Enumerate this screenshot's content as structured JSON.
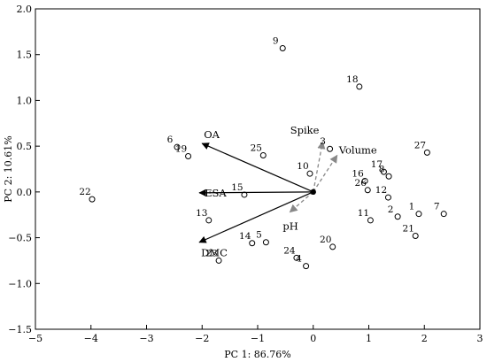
{
  "chart_data": {
    "type": "scatter",
    "xlabel": "PC 1: 86.76%",
    "ylabel": "PC 2: 10.61%",
    "xlim": [
      -5,
      3
    ],
    "ylim": [
      -1.5,
      2.0
    ],
    "xticks": [
      -5,
      -4,
      -3,
      -2,
      -1,
      0,
      1,
      2,
      3
    ],
    "xtick_labels": [
      "−5",
      "−4",
      "−3",
      "−2",
      "−1",
      "0",
      "1",
      "2",
      "3"
    ],
    "yticks": [
      -1.5,
      -1.0,
      -0.5,
      0.0,
      0.5,
      1.0,
      1.5,
      2.0
    ],
    "ytick_labels": [
      "−1.5",
      "−1.0",
      "−0.5",
      "0.0",
      "0.5",
      "1.0",
      "1.5",
      "2.0"
    ],
    "grid": false,
    "points": [
      {
        "label": "1",
        "x": 1.9,
        "y": -0.24
      },
      {
        "label": "2",
        "x": 1.52,
        "y": -0.27
      },
      {
        "label": "3",
        "x": 0.3,
        "y": 0.47
      },
      {
        "label": "4",
        "x": -0.13,
        "y": -0.81
      },
      {
        "label": "5",
        "x": -0.85,
        "y": -0.55
      },
      {
        "label": "6",
        "x": -2.45,
        "y": 0.49
      },
      {
        "label": "7",
        "x": 2.35,
        "y": -0.24
      },
      {
        "label": "8",
        "x": 1.36,
        "y": 0.17
      },
      {
        "label": "9",
        "x": -0.55,
        "y": 1.57
      },
      {
        "label": "10",
        "x": -0.06,
        "y": 0.2
      },
      {
        "label": "11",
        "x": 1.03,
        "y": -0.31
      },
      {
        "label": "12",
        "x": 1.35,
        "y": -0.06
      },
      {
        "label": "13",
        "x": -1.88,
        "y": -0.31
      },
      {
        "label": "14",
        "x": -1.1,
        "y": -0.56
      },
      {
        "label": "15",
        "x": -1.24,
        "y": -0.03
      },
      {
        "label": "16",
        "x": 0.93,
        "y": 0.12
      },
      {
        "label": "17",
        "x": 1.27,
        "y": 0.22
      },
      {
        "label": "18",
        "x": 0.83,
        "y": 1.15
      },
      {
        "label": "19",
        "x": -2.25,
        "y": 0.39
      },
      {
        "label": "20",
        "x": 0.35,
        "y": -0.6
      },
      {
        "label": "21",
        "x": 1.84,
        "y": -0.48
      },
      {
        "label": "22",
        "x": -3.98,
        "y": -0.08
      },
      {
        "label": "23",
        "x": -1.7,
        "y": -0.75
      },
      {
        "label": "24",
        "x": -0.3,
        "y": -0.72
      },
      {
        "label": "25",
        "x": -0.9,
        "y": 0.4
      },
      {
        "label": "26",
        "x": 0.98,
        "y": 0.02
      },
      {
        "label": "27",
        "x": 2.05,
        "y": 0.43
      }
    ],
    "vectors": [
      {
        "label": "OA",
        "x": -2.0,
        "y": 0.53,
        "style": "solid"
      },
      {
        "label": "ESA",
        "x": -2.05,
        "y": -0.01,
        "style": "solid"
      },
      {
        "label": "DMC",
        "x": -2.05,
        "y": -0.55,
        "style": "solid"
      },
      {
        "label": "Spike",
        "x": 0.17,
        "y": 0.55,
        "style": "dashed"
      },
      {
        "label": "Volume",
        "x": 0.43,
        "y": 0.4,
        "style": "dashed"
      },
      {
        "label": "pH",
        "x": -0.42,
        "y": -0.22,
        "style": "dashed"
      }
    ],
    "colors": {
      "solid": "#000000",
      "dashed": "#888888"
    }
  }
}
